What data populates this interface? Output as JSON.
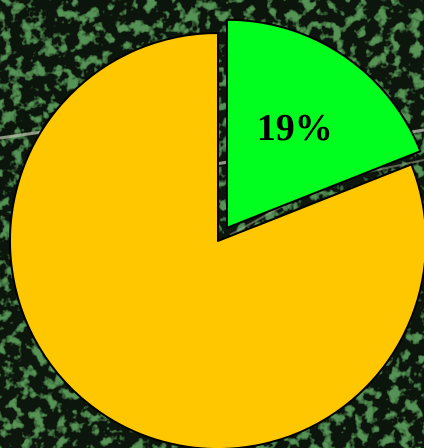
{
  "chart_data": {
    "type": "pie",
    "slices": [
      {
        "value": 19,
        "label": "19%",
        "color": "#00ff1e",
        "exploded": true
      },
      {
        "value": 81,
        "label": "",
        "color": "#ffc700",
        "exploded": false
      }
    ],
    "legend": "none"
  },
  "colors": {
    "label_text": "#000000",
    "slice_outline": "#000000",
    "background": "satellite-photo-forest-dark-green"
  }
}
